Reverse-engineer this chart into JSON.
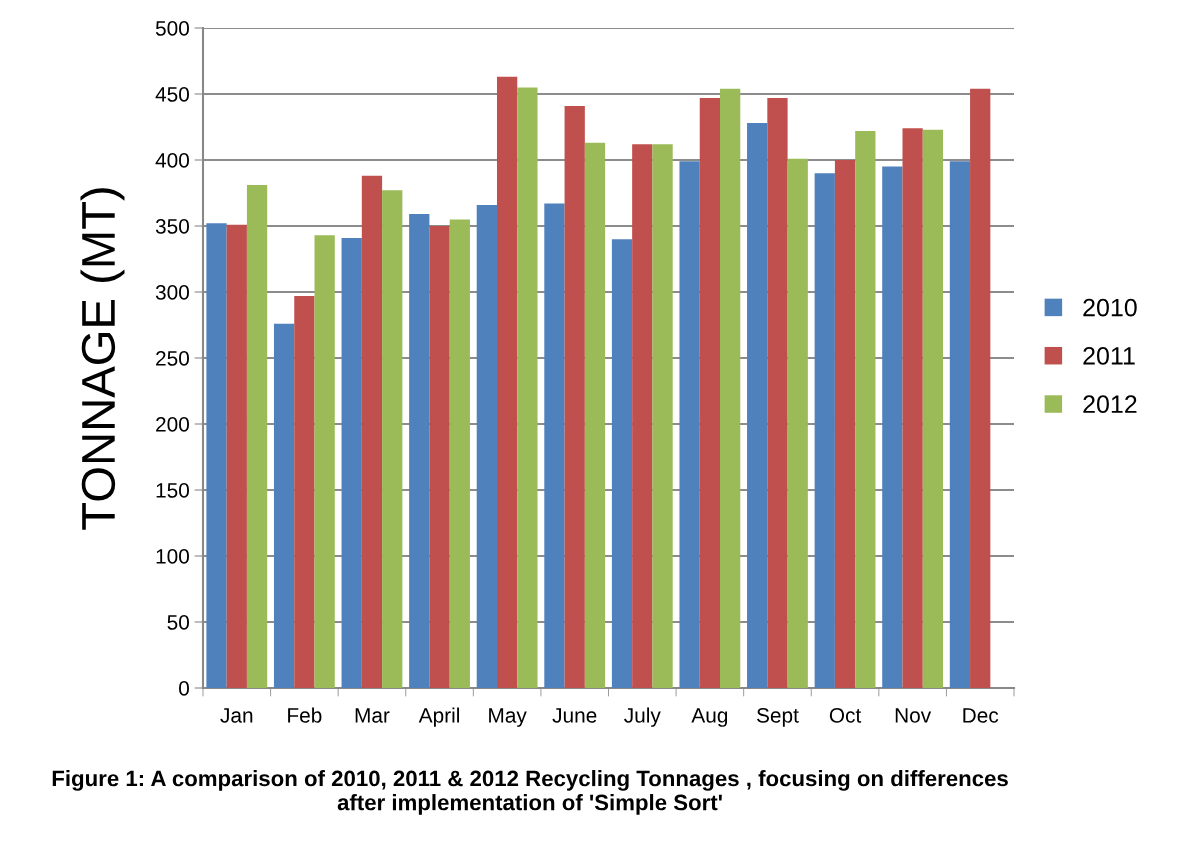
{
  "chart_data": {
    "type": "bar",
    "ylabel": "TONNAGE (MT)",
    "categories": [
      "Jan",
      "Feb",
      "Mar",
      "April",
      "May",
      "June",
      "July",
      "Aug",
      "Sept",
      "Oct",
      "Nov",
      "Dec"
    ],
    "series": [
      {
        "name": "2010",
        "color": "#4f81bd",
        "values": [
          352,
          276,
          341,
          359,
          366,
          367,
          340,
          399,
          428,
          390,
          395,
          399
        ]
      },
      {
        "name": "2011",
        "color": "#c0504d",
        "values": [
          351,
          297,
          388,
          350,
          463,
          441,
          412,
          447,
          447,
          400,
          424,
          454
        ]
      },
      {
        "name": "2012",
        "color": "#9bbb59",
        "values": [
          381,
          343,
          377,
          355,
          455,
          413,
          412,
          454,
          401,
          422,
          423,
          null
        ]
      }
    ],
    "ylim": [
      0,
      500
    ],
    "yticks": [
      0,
      50,
      100,
      150,
      200,
      250,
      300,
      350,
      400,
      450,
      500
    ],
    "grid": "y",
    "legend": "right",
    "annotations": [
      "Figure 1: A comparison of 2010, 2011 & 2012 Recycling Tonnages , focusing on differences after implementation of 'Simple Sort'"
    ]
  }
}
